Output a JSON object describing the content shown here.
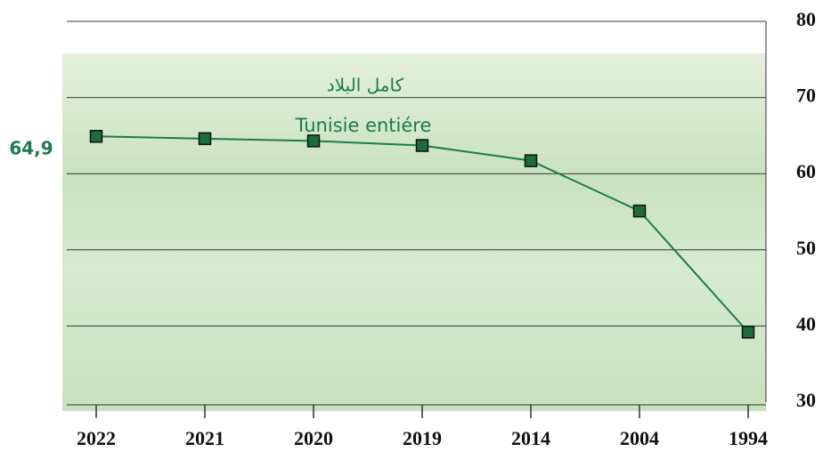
{
  "chart_data": {
    "type": "line",
    "annotations": [
      "كامل البلاد"
    ],
    "categories": [
      "2022",
      "2021",
      "2020",
      "2019",
      "2014",
      "2004",
      "1994"
    ],
    "series": [
      {
        "name": "Tunisie entiére",
        "color": "#1d7a4c",
        "marker_color": "#1e6b3c",
        "values": [
          64.9,
          64.6,
          64.3,
          63.7,
          61.7,
          55.1,
          39.2
        ],
        "value_labels": [
          "64,9",
          null,
          null,
          null,
          null,
          null,
          null
        ]
      }
    ],
    "ylim": [
      30,
      80
    ],
    "yticks": [
      30,
      40,
      50,
      60,
      70,
      80
    ],
    "grid": true,
    "y_axis_side": "right"
  }
}
